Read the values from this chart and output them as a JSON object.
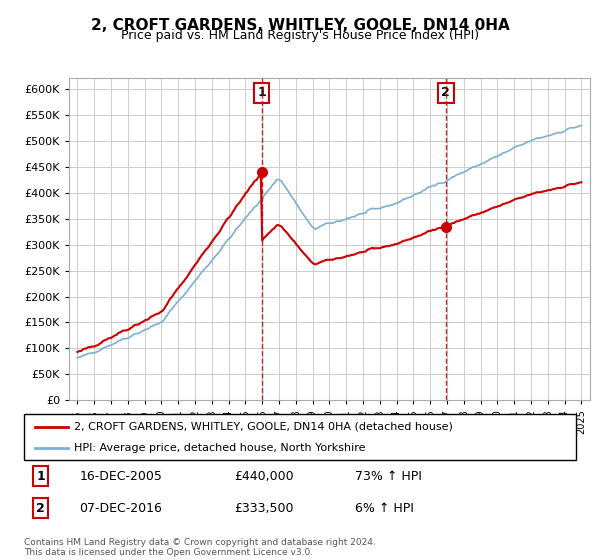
{
  "title": "2, CROFT GARDENS, WHITLEY, GOOLE, DN14 0HA",
  "subtitle": "Price paid vs. HM Land Registry's House Price Index (HPI)",
  "legend_line1": "2, CROFT GARDENS, WHITLEY, GOOLE, DN14 0HA (detached house)",
  "legend_line2": "HPI: Average price, detached house, North Yorkshire",
  "annotation1_label": "1",
  "annotation1_date": "16-DEC-2005",
  "annotation1_price": "£440,000",
  "annotation1_hpi": "73% ↑ HPI",
  "annotation2_label": "2",
  "annotation2_date": "07-DEC-2016",
  "annotation2_price": "£333,500",
  "annotation2_hpi": "6% ↑ HPI",
  "footer": "Contains HM Land Registry data © Crown copyright and database right 2024.\nThis data is licensed under the Open Government Licence v3.0.",
  "sale1_year": 2005.96,
  "sale1_value": 440000,
  "sale2_year": 2016.93,
  "sale2_value": 333500,
  "property_color": "#cc0000",
  "hpi_color": "#7bafd4",
  "background_color": "#ffffff",
  "grid_color": "#cccccc",
  "ylim_min": 0,
  "ylim_max": 620000,
  "xlim_min": 1994.5,
  "xlim_max": 2025.5
}
